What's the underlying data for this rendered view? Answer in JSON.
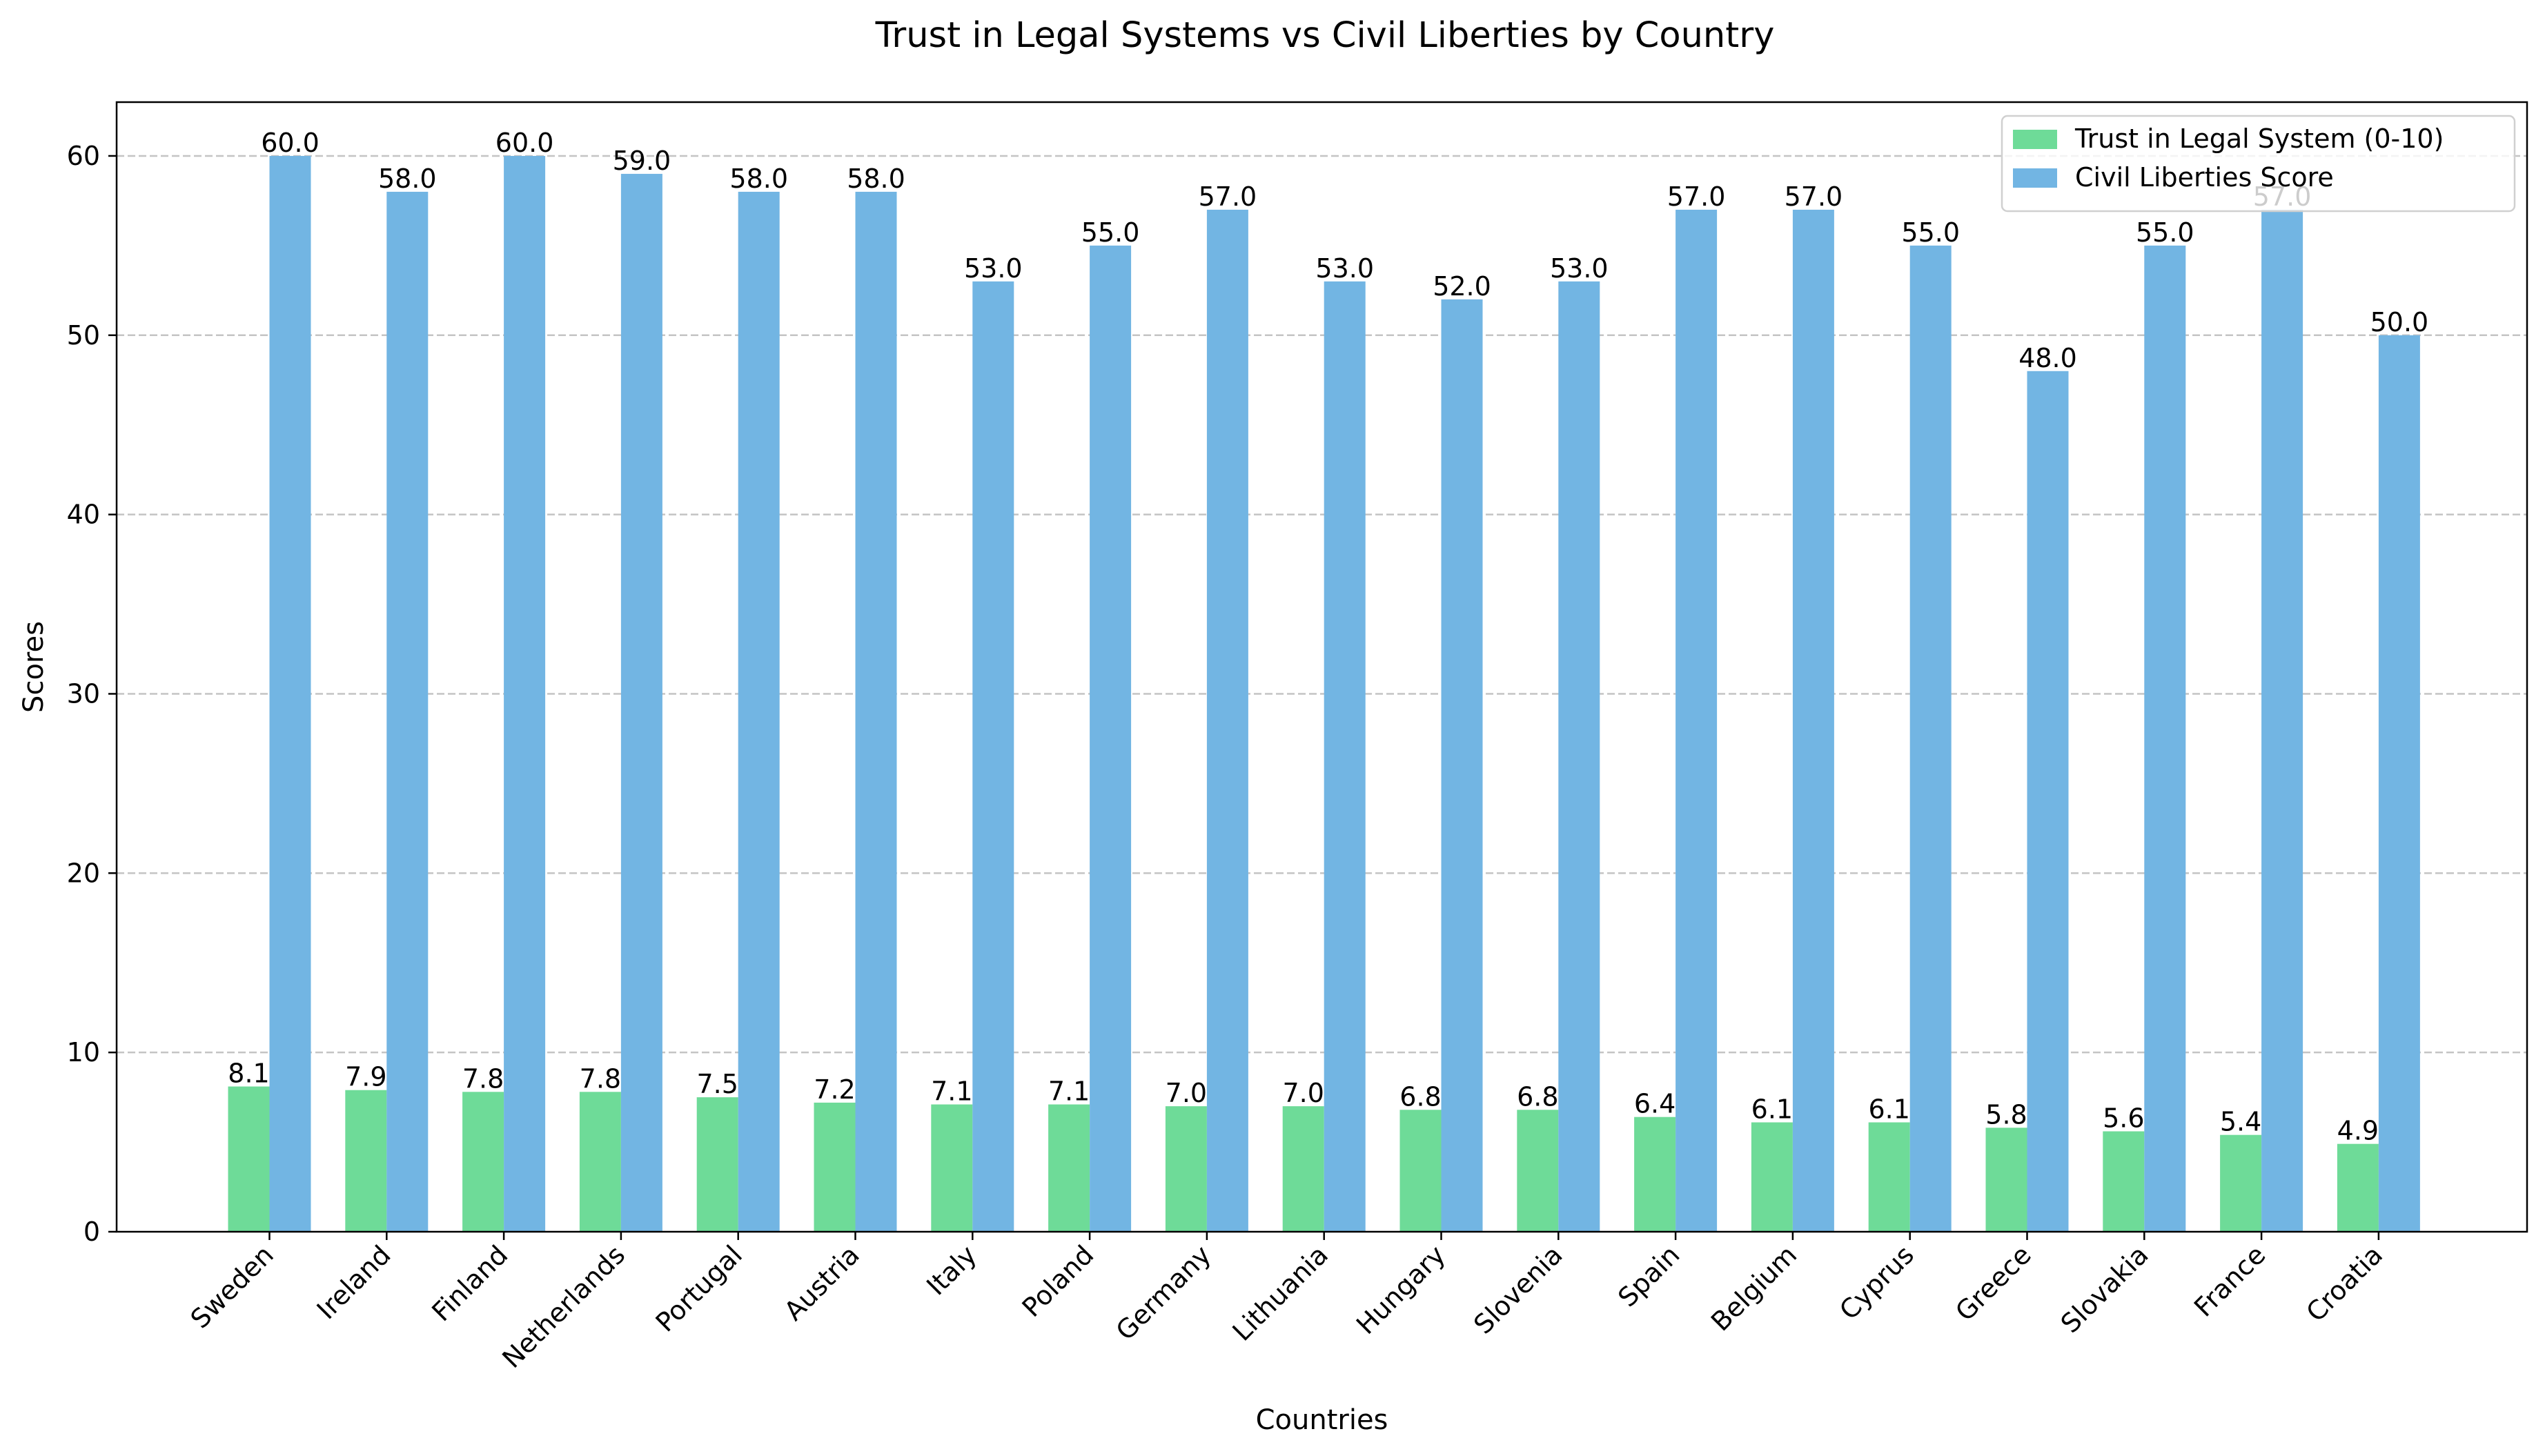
{
  "chart_data": {
    "type": "bar",
    "title": "Trust in Legal Systems vs Civil Liberties by Country",
    "xlabel": "Countries",
    "ylabel": "Scores",
    "ylim": [
      0,
      63
    ],
    "yticks": [
      0,
      10,
      20,
      30,
      40,
      50,
      60
    ],
    "grid": "horizontal dashed",
    "legend_position": "top-right",
    "categories": [
      "Sweden",
      "Ireland",
      "Finland",
      "Netherlands",
      "Portugal",
      "Austria",
      "Italy",
      "Poland",
      "Germany",
      "Lithuania",
      "Hungary",
      "Slovenia",
      "Spain",
      "Belgium",
      "Cyprus",
      "Greece",
      "Slovakia",
      "France",
      "Croatia"
    ],
    "series": [
      {
        "name": "Trust in Legal System (0-10)",
        "color": "#6edb98",
        "values": [
          8.1,
          7.9,
          7.8,
          7.8,
          7.5,
          7.2,
          7.1,
          7.1,
          7.0,
          7.0,
          6.8,
          6.8,
          6.4,
          6.1,
          6.1,
          5.8,
          5.6,
          5.4,
          4.9
        ]
      },
      {
        "name": "Civil Liberties Score",
        "color": "#72b5e3",
        "values": [
          60.0,
          58.0,
          60.0,
          59.0,
          58.0,
          58.0,
          53.0,
          55.0,
          57.0,
          53.0,
          52.0,
          53.0,
          57.0,
          57.0,
          55.0,
          48.0,
          55.0,
          57.0,
          50.0
        ]
      }
    ]
  }
}
